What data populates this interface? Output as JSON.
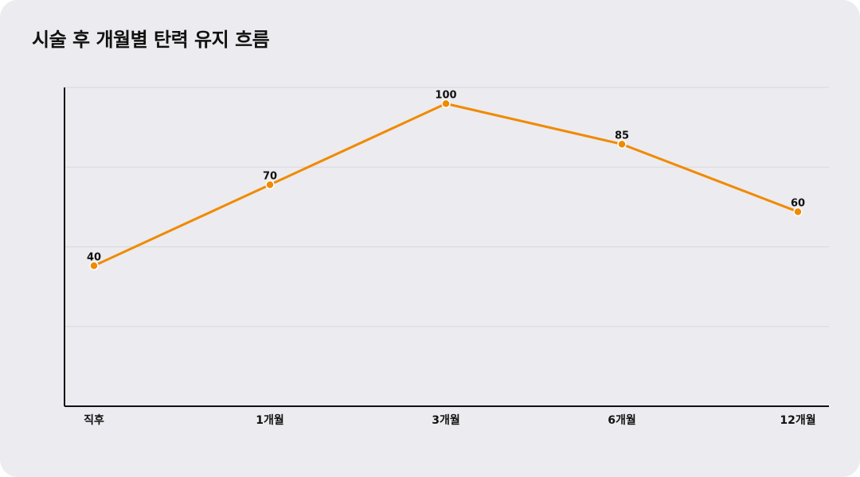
{
  "title": "시술 후 개월별 탄력 유지 흐름",
  "colors": {
    "background": "#ecebef",
    "line": "#f08a00",
    "grid": "#d8d7dc",
    "axis": "#111111"
  },
  "chart_data": {
    "type": "line",
    "title": "시술 후 개월별 탄력 유지 흐름",
    "categories": [
      "직후",
      "1개월",
      "3개월",
      "6개월",
      "12개월"
    ],
    "series": [
      {
        "values": [
          40,
          70,
          100,
          85,
          60
        ]
      }
    ],
    "xlabel": "",
    "ylabel": "",
    "ylim": [
      -12,
      106
    ],
    "grid": true,
    "legend": "none",
    "data_labels": true
  }
}
